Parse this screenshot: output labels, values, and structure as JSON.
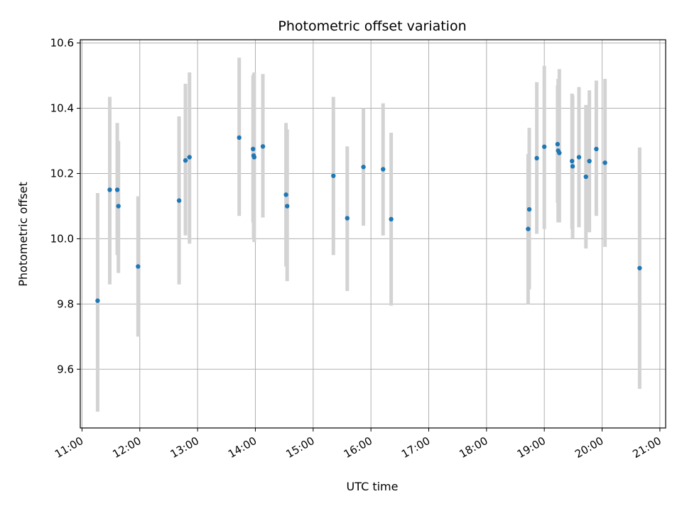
{
  "chart_data": {
    "type": "scatter",
    "title": "Photometric offset variation",
    "xlabel": "UTC time",
    "ylabel": "Photometric offset",
    "grid": true,
    "xlim_hours": [
      10.97,
      21.1
    ],
    "ylim": [
      9.42,
      10.61
    ],
    "x_ticks": [
      {
        "hour": 11,
        "label": "11:00"
      },
      {
        "hour": 12,
        "label": "12:00"
      },
      {
        "hour": 13,
        "label": "13:00"
      },
      {
        "hour": 14,
        "label": "14:00"
      },
      {
        "hour": 15,
        "label": "15:00"
      },
      {
        "hour": 16,
        "label": "16:00"
      },
      {
        "hour": 17,
        "label": "17:00"
      },
      {
        "hour": 18,
        "label": "18:00"
      },
      {
        "hour": 19,
        "label": "19:00"
      },
      {
        "hour": 20,
        "label": "20:00"
      },
      {
        "hour": 21,
        "label": "21:00"
      }
    ],
    "y_ticks": [
      {
        "value": 9.6,
        "label": "9.6"
      },
      {
        "value": 9.8,
        "label": "9.8"
      },
      {
        "value": 10.0,
        "label": "10.0"
      },
      {
        "value": 10.2,
        "label": "10.2"
      },
      {
        "value": 10.4,
        "label": "10.4"
      },
      {
        "value": 10.6,
        "label": "10.6"
      }
    ],
    "point_color": "#1f77b4",
    "errorbar_color": "#d3d3d3",
    "points": [
      {
        "t": 11.27,
        "y": 9.81,
        "lo": 9.47,
        "hi": 10.14
      },
      {
        "t": 11.48,
        "y": 10.15,
        "lo": 9.86,
        "hi": 10.435
      },
      {
        "t": 11.61,
        "y": 10.15,
        "lo": 9.95,
        "hi": 10.355
      },
      {
        "t": 11.63,
        "y": 10.1,
        "lo": 9.895,
        "hi": 10.3
      },
      {
        "t": 11.97,
        "y": 9.915,
        "lo": 9.7,
        "hi": 10.13
      },
      {
        "t": 12.68,
        "y": 10.117,
        "lo": 9.86,
        "hi": 10.375
      },
      {
        "t": 12.79,
        "y": 10.24,
        "lo": 10.01,
        "hi": 10.475
      },
      {
        "t": 12.86,
        "y": 10.25,
        "lo": 9.985,
        "hi": 10.51
      },
      {
        "t": 13.72,
        "y": 10.31,
        "lo": 10.07,
        "hi": 10.555
      },
      {
        "t": 13.96,
        "y": 10.275,
        "lo": 10.05,
        "hi": 10.5
      },
      {
        "t": 13.97,
        "y": 10.255,
        "lo": 10.0,
        "hi": 10.505
      },
      {
        "t": 13.98,
        "y": 10.25,
        "lo": 9.99,
        "hi": 10.51
      },
      {
        "t": 14.13,
        "y": 10.283,
        "lo": 10.065,
        "hi": 10.505
      },
      {
        "t": 14.53,
        "y": 10.135,
        "lo": 9.915,
        "hi": 10.355
      },
      {
        "t": 14.55,
        "y": 10.1,
        "lo": 9.87,
        "hi": 10.335
      },
      {
        "t": 15.35,
        "y": 10.193,
        "lo": 9.95,
        "hi": 10.435
      },
      {
        "t": 15.59,
        "y": 10.063,
        "lo": 9.84,
        "hi": 10.283
      },
      {
        "t": 15.87,
        "y": 10.22,
        "lo": 10.04,
        "hi": 10.4
      },
      {
        "t": 16.21,
        "y": 10.213,
        "lo": 10.01,
        "hi": 10.415
      },
      {
        "t": 16.35,
        "y": 10.06,
        "lo": 9.795,
        "hi": 10.325
      },
      {
        "t": 18.72,
        "y": 10.03,
        "lo": 9.8,
        "hi": 10.26
      },
      {
        "t": 18.74,
        "y": 10.09,
        "lo": 9.845,
        "hi": 10.34
      },
      {
        "t": 18.87,
        "y": 10.247,
        "lo": 10.015,
        "hi": 10.48
      },
      {
        "t": 19.0,
        "y": 10.282,
        "lo": 10.03,
        "hi": 10.53
      },
      {
        "t": 19.23,
        "y": 10.29,
        "lo": 10.11,
        "hi": 10.47
      },
      {
        "t": 19.24,
        "y": 10.27,
        "lo": 10.05,
        "hi": 10.49
      },
      {
        "t": 19.26,
        "y": 10.263,
        "lo": 10.05,
        "hi": 10.52
      },
      {
        "t": 19.48,
        "y": 10.238,
        "lo": 10.03,
        "hi": 10.445
      },
      {
        "t": 19.49,
        "y": 10.222,
        "lo": 10.0,
        "hi": 10.44
      },
      {
        "t": 19.6,
        "y": 10.25,
        "lo": 10.035,
        "hi": 10.465
      },
      {
        "t": 19.72,
        "y": 10.19,
        "lo": 9.97,
        "hi": 10.41
      },
      {
        "t": 19.78,
        "y": 10.238,
        "lo": 10.02,
        "hi": 10.455
      },
      {
        "t": 19.9,
        "y": 10.275,
        "lo": 10.07,
        "hi": 10.485
      },
      {
        "t": 20.05,
        "y": 10.233,
        "lo": 9.975,
        "hi": 10.49
      },
      {
        "t": 20.65,
        "y": 9.91,
        "lo": 9.54,
        "hi": 10.28
      }
    ]
  }
}
